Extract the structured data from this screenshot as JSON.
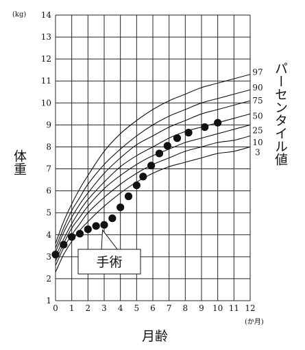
{
  "chart_data": {
    "type": "line",
    "ylabel": "体重",
    "xlabel": "月齢",
    "y_unit": "(kg)",
    "x_unit": "(か月)",
    "percentile_label": "パーセンタイル値",
    "annotation": "手術",
    "annotation_point": [
      2.9,
      4.4
    ],
    "xlim": [
      0,
      12
    ],
    "ylim": [
      1,
      14
    ],
    "x_ticks": [
      "0",
      "1",
      "2",
      "3",
      "4",
      "5",
      "6",
      "7",
      "8",
      "9",
      "10",
      "11",
      "12"
    ],
    "y_ticks": [
      "1",
      "2",
      "3",
      "4",
      "5",
      "6",
      "7",
      "8",
      "9",
      "10",
      "11",
      "12",
      "13",
      "14"
    ],
    "x_grid": [
      0,
      1,
      2,
      3,
      4,
      5,
      6,
      7,
      8,
      9,
      10,
      11,
      12
    ],
    "y_grid": [
      1,
      2,
      3,
      4,
      5,
      6,
      7,
      8,
      9,
      10,
      11,
      12,
      13,
      14
    ],
    "grid": true,
    "percentile_x": [
      0,
      0.5,
      1,
      1.5,
      2,
      3,
      4,
      5,
      6,
      7,
      8,
      9,
      10,
      11,
      12
    ],
    "percentiles": [
      {
        "name": "97",
        "values": [
          3.6,
          4.6,
          5.4,
          6.1,
          6.7,
          7.8,
          8.6,
          9.2,
          9.7,
          10.1,
          10.4,
          10.7,
          10.9,
          11.1,
          11.3
        ]
      },
      {
        "name": "90",
        "values": [
          3.4,
          4.3,
          5.1,
          5.7,
          6.3,
          7.2,
          7.9,
          8.5,
          9.0,
          9.4,
          9.7,
          10.0,
          10.2,
          10.4,
          10.6
        ]
      },
      {
        "name": "75",
        "values": [
          3.2,
          4.1,
          4.8,
          5.4,
          5.9,
          6.8,
          7.5,
          8.1,
          8.5,
          8.9,
          9.2,
          9.5,
          9.7,
          9.9,
          10.1
        ]
      },
      {
        "name": "50",
        "values": [
          3.0,
          3.8,
          4.5,
          5.1,
          5.6,
          6.4,
          7.1,
          7.6,
          8.0,
          8.4,
          8.7,
          8.9,
          9.1,
          9.3,
          9.5
        ]
      },
      {
        "name": "25",
        "values": [
          2.8,
          3.6,
          4.3,
          4.8,
          5.3,
          6.1,
          6.7,
          7.2,
          7.6,
          7.9,
          8.2,
          8.4,
          8.6,
          8.8,
          9.0
        ]
      },
      {
        "name": "10",
        "values": [
          2.6,
          3.4,
          4.0,
          4.5,
          5.0,
          5.7,
          6.3,
          6.8,
          7.2,
          7.5,
          7.8,
          8.0,
          8.2,
          8.3,
          8.5
        ]
      },
      {
        "name": "3",
        "values": [
          2.3,
          3.1,
          3.7,
          4.2,
          4.6,
          5.3,
          5.9,
          6.4,
          6.8,
          7.1,
          7.3,
          7.5,
          7.7,
          7.8,
          8.0
        ]
      }
    ],
    "percentile_label_y": [
      11.4,
      10.7,
      10.1,
      9.4,
      8.75,
      8.2,
      7.75
    ],
    "series": [
      {
        "x": [
          0,
          0.5,
          1,
          1.5,
          2,
          2.5,
          3,
          3.5,
          4,
          4.5,
          5,
          5.4,
          5.9,
          6.4,
          6.9,
          7.5,
          8.2,
          9.2,
          10
        ],
        "y": [
          3.1,
          3.55,
          3.9,
          4.05,
          4.25,
          4.4,
          4.45,
          4.75,
          5.25,
          5.75,
          6.25,
          6.65,
          7.15,
          7.7,
          8.05,
          8.4,
          8.65,
          8.9,
          9.1
        ]
      }
    ]
  }
}
